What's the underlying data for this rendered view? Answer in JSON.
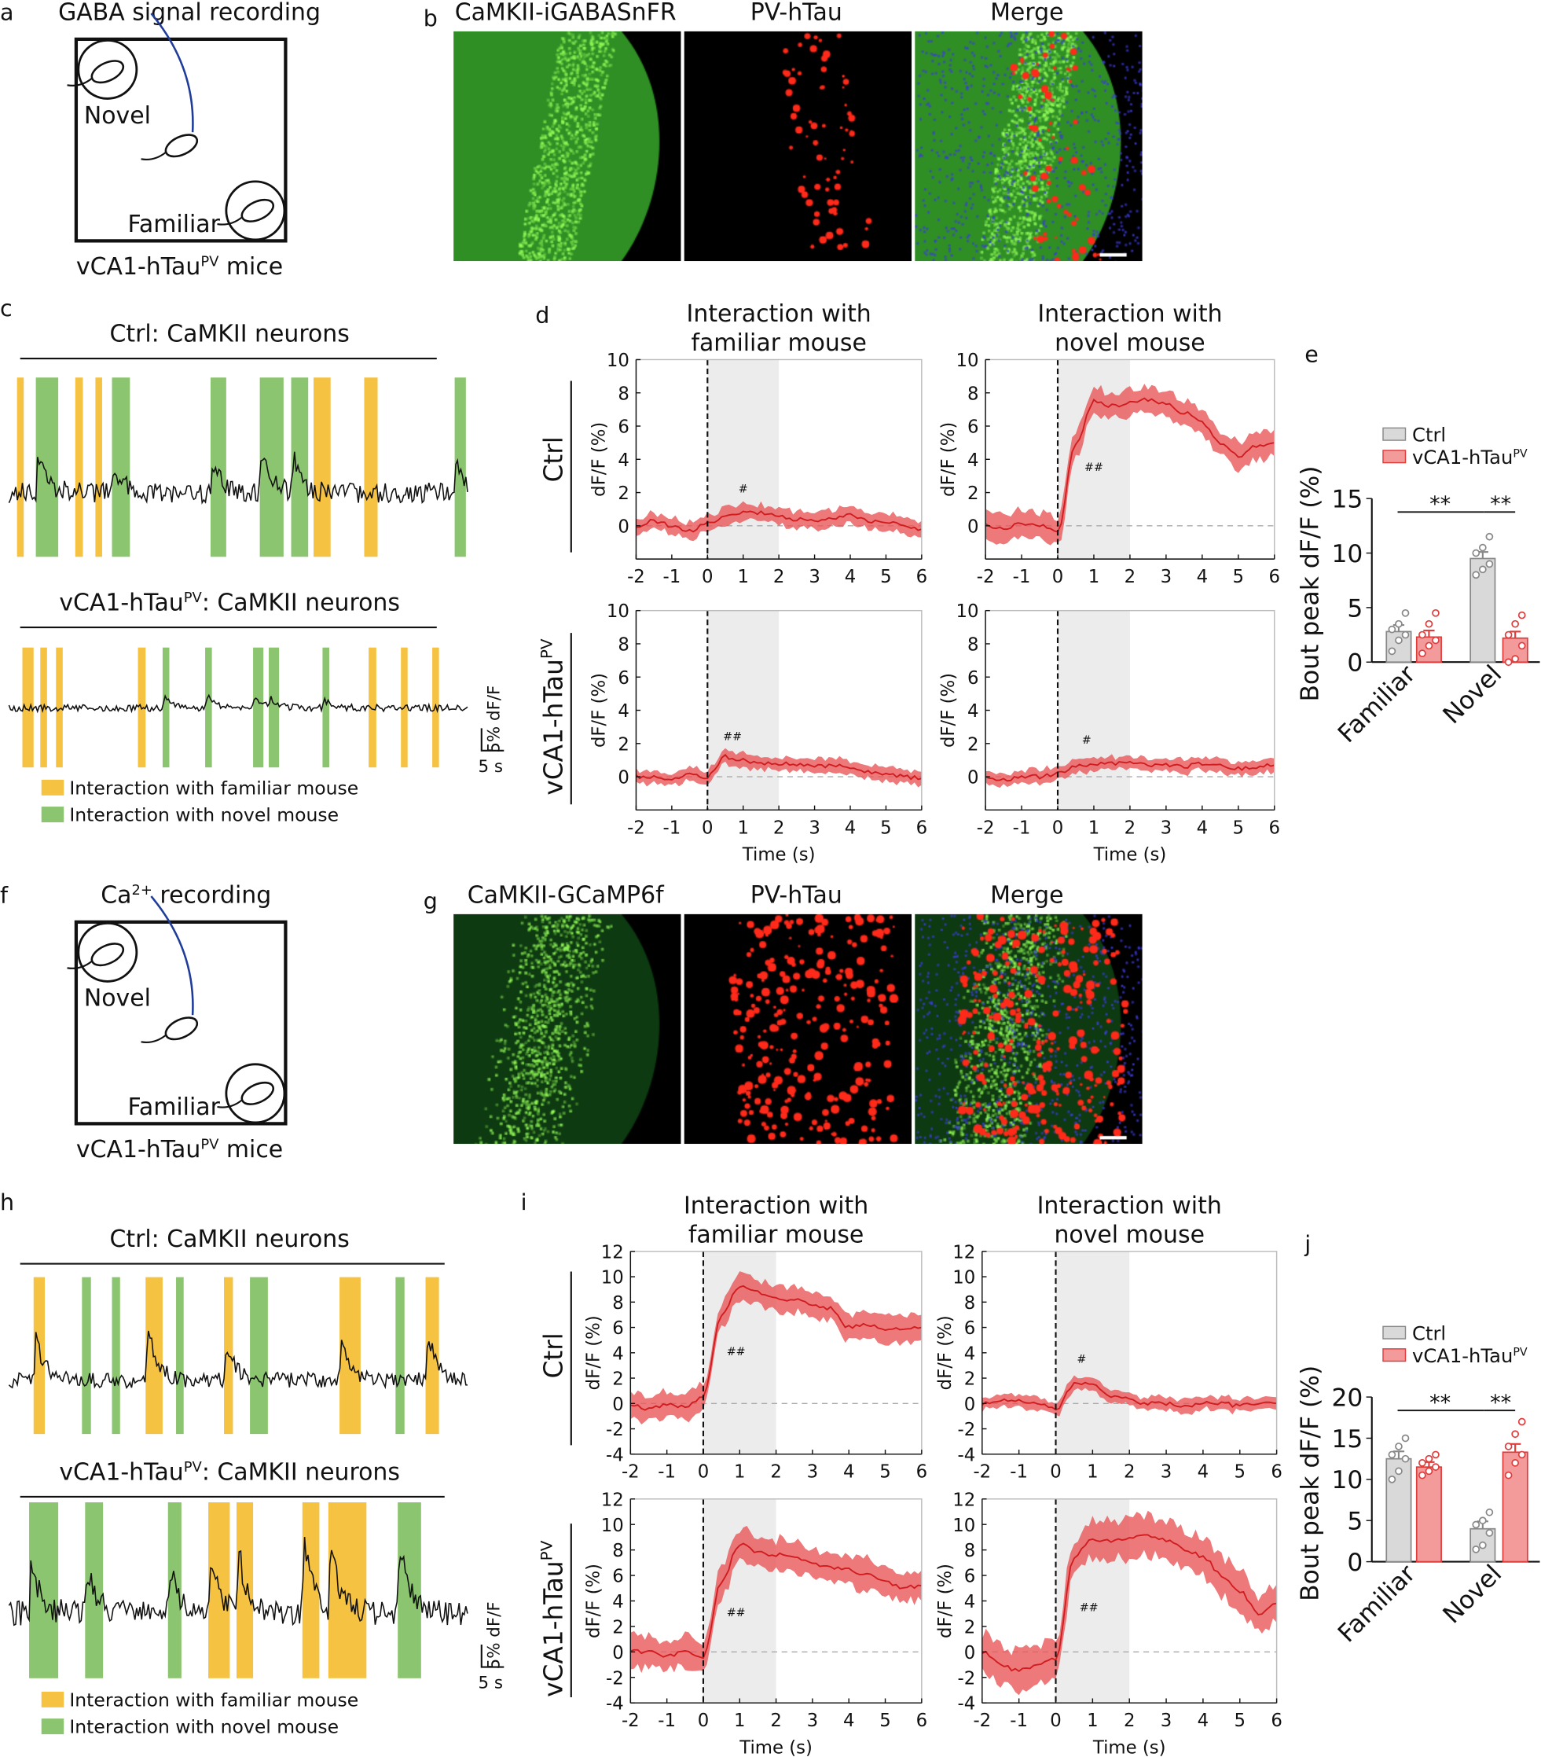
{
  "colors": {
    "green": "#5cc02b",
    "red": "#e8231f",
    "merge": "#c9c93a",
    "familiar_window": "#f5c242",
    "novel_window": "#8cc56f",
    "ctrl_bar": "#d9d9d9",
    "htau_bar": "#f39a9a",
    "line": "#e03a3a"
  },
  "panel_a": {
    "label": "a",
    "title": "GABA signal recording",
    "novel": "Novel",
    "familiar": "Familiar",
    "caption": "vCA1-hTau",
    "caption_sup": "PV",
    "caption_end": " mice"
  },
  "panel_b": {
    "label": "b",
    "channels": [
      "CaMKII-iGABASnFR",
      "PV-hTau",
      "Merge"
    ]
  },
  "panel_c": {
    "label": "c",
    "ctrl_title": "Ctrl: CaMKII neurons",
    "htau_title": "vCA1-hTau",
    "htau_sup": "PV",
    "htau_title_end": ": CaMKII neurons",
    "scale_x": "5 s",
    "scale_y": "5% dF/F",
    "legend_familiar": "Interaction with familiar mouse",
    "legend_novel": "Interaction with novel mouse",
    "ctrl_windows": [
      [
        "familiar",
        1.8,
        3.3
      ],
      [
        "novel",
        6,
        11
      ],
      [
        "familiar",
        14.8,
        16.5
      ],
      [
        "familiar",
        19.3,
        20.8
      ],
      [
        "novel",
        23,
        27
      ],
      [
        "novel",
        45,
        48.5
      ],
      [
        "novel",
        56,
        61.3
      ],
      [
        "novel",
        63,
        66.8
      ],
      [
        "familiar",
        68,
        71.8
      ],
      [
        "familiar",
        79.3,
        82.3
      ],
      [
        "novel",
        99.5,
        102
      ]
    ],
    "htau_windows": [
      [
        "familiar",
        3,
        5.5
      ],
      [
        "familiar",
        7,
        8.5
      ],
      [
        "familiar",
        10.5,
        12
      ],
      [
        "familiar",
        28.8,
        30.5
      ],
      [
        "novel",
        34.3,
        35.8
      ],
      [
        "novel",
        43.8,
        45.3
      ],
      [
        "novel",
        54.5,
        56.8
      ],
      [
        "novel",
        58,
        60.3
      ],
      [
        "novel",
        70,
        71.5
      ],
      [
        "familiar",
        80.3,
        82
      ],
      [
        "familiar",
        87.5,
        89
      ],
      [
        "familiar",
        94.5,
        96
      ]
    ]
  },
  "panel_d": {
    "label": "d",
    "row_ctrl": "Ctrl",
    "row_htau": "vCA1-hTau",
    "row_htau_sup": "PV"
  },
  "panel_e": {
    "label": "e"
  },
  "panel_f": {
    "label": "f",
    "title": "Ca",
    "title_sup": "2+",
    "title_end": " recording",
    "novel": "Novel",
    "familiar": "Familiar",
    "caption": "vCA1-hTau",
    "caption_sup": "PV",
    "caption_end": " mice"
  },
  "panel_g": {
    "label": "g",
    "channels": [
      "CaMKII-GCaMP6f",
      "PV-hTau",
      "Merge"
    ]
  },
  "panel_h": {
    "label": "h",
    "ctrl_title": "Ctrl: CaMKII neurons",
    "htau_title": "vCA1-hTau",
    "htau_sup": "PV",
    "htau_title_end": ": CaMKII neurons",
    "scale_x": "5 s",
    "scale_y": "5% dF/F",
    "legend_familiar": "Interaction with familiar mouse",
    "legend_novel": "Interaction with novel mouse",
    "ctrl_windows": [
      [
        "familiar",
        5.5,
        8
      ],
      [
        "novel",
        16.3,
        18.3
      ],
      [
        "novel",
        23,
        24.8
      ],
      [
        "familiar",
        30.5,
        34.3
      ],
      [
        "novel",
        37.3,
        39
      ],
      [
        "familiar",
        48,
        50
      ],
      [
        "novel",
        53.8,
        57.8
      ],
      [
        "familiar",
        73.8,
        78.5
      ],
      [
        "novel",
        86.3,
        88.3
      ],
      [
        "familiar",
        93,
        96
      ]
    ],
    "htau_windows": [
      [
        "novel",
        4.5,
        11
      ],
      [
        "novel",
        17,
        21
      ],
      [
        "novel",
        35.5,
        38.5
      ],
      [
        "familiar",
        44.5,
        49.3
      ],
      [
        "familiar",
        50.8,
        54.5
      ],
      [
        "familiar",
        65.5,
        69.3
      ],
      [
        "familiar",
        71.3,
        79.8
      ],
      [
        "novel",
        86.8,
        92
      ]
    ]
  },
  "panel_i": {
    "label": "i",
    "row_ctrl": "Ctrl",
    "row_htau": "vCA1-hTau",
    "row_htau_sup": "PV"
  },
  "panel_j": {
    "label": "j"
  },
  "chart_data": [
    {
      "id": "d-ctrl-familiar",
      "type": "line",
      "title": [
        "Interaction with",
        "familiar mouse"
      ],
      "ylabel": "dF/F (%)",
      "xlabel": "",
      "xlim": [
        -2,
        6
      ],
      "ylim": [
        -2,
        10
      ],
      "xticks": [
        -2,
        -1,
        0,
        1,
        2,
        3,
        4,
        5,
        6
      ],
      "yticks": [
        0,
        2,
        4,
        6,
        8,
        10
      ],
      "shaded": [
        0,
        2
      ],
      "annotation": "#",
      "x": [
        -2,
        -1.5,
        -1,
        -0.5,
        0,
        0.5,
        1,
        1.5,
        2,
        2.5,
        3,
        3.5,
        4,
        4.5,
        5,
        5.5,
        6
      ],
      "mean": [
        0,
        0.3,
        0,
        -0.3,
        0.2,
        0.5,
        0.8,
        0.8,
        0.6,
        0.4,
        0.3,
        0.5,
        0.7,
        0.3,
        0.2,
        0,
        -0.2
      ],
      "sem": 0.5
    },
    {
      "id": "d-ctrl-novel",
      "type": "line",
      "title": [
        "Interaction with",
        "novel mouse"
      ],
      "ylabel": "dF/F (%)",
      "xlabel": "",
      "xlim": [
        -2,
        6
      ],
      "ylim": [
        -2,
        10
      ],
      "xticks": [
        -2,
        -1,
        0,
        1,
        2,
        3,
        4,
        5,
        6
      ],
      "yticks": [
        0,
        2,
        4,
        6,
        8,
        10
      ],
      "shaded": [
        0,
        2
      ],
      "annotation": "##",
      "x": [
        -2,
        -1.5,
        -1,
        -0.5,
        0,
        0.5,
        1,
        1.5,
        2,
        2.5,
        3,
        3.5,
        4,
        4.5,
        5,
        5.5,
        6
      ],
      "mean": [
        0,
        -0.2,
        0.1,
        0,
        -0.3,
        5,
        7.5,
        7.2,
        7.4,
        7.6,
        7.3,
        6.8,
        6.2,
        5,
        4.2,
        4.8,
        5
      ],
      "sem": 0.8
    },
    {
      "id": "d-htau-familiar",
      "type": "line",
      "title": [],
      "ylabel": "dF/F (%)",
      "xlabel": "Time (s)",
      "xlim": [
        -2,
        6
      ],
      "ylim": [
        -2,
        10
      ],
      "xticks": [
        -2,
        -1,
        0,
        1,
        2,
        3,
        4,
        5,
        6
      ],
      "yticks": [
        0,
        2,
        4,
        6,
        8,
        10
      ],
      "shaded": [
        0,
        2
      ],
      "annotation": "##",
      "x": [
        -2,
        -1.5,
        -1,
        -0.5,
        0,
        0.5,
        1,
        1.5,
        2,
        2.5,
        3,
        3.5,
        4,
        4.5,
        5,
        5.5,
        6
      ],
      "mean": [
        0,
        0,
        -0.1,
        0.1,
        0,
        1.2,
        1,
        0.8,
        0.8,
        0.7,
        0.6,
        0.7,
        0.5,
        0.3,
        0.2,
        0,
        -0.1
      ],
      "sem": 0.4
    },
    {
      "id": "d-htau-novel",
      "type": "line",
      "title": [],
      "ylabel": "dF/F (%)",
      "xlabel": "Time (s)",
      "xlim": [
        -2,
        6
      ],
      "ylim": [
        -2,
        10
      ],
      "xticks": [
        -2,
        -1,
        0,
        1,
        2,
        3,
        4,
        5,
        6
      ],
      "yticks": [
        0,
        2,
        4,
        6,
        8,
        10
      ],
      "shaded": [
        0,
        2
      ],
      "annotation": "#",
      "x": [
        -2,
        -1.5,
        -1,
        -0.5,
        0,
        0.5,
        1,
        1.5,
        2,
        2.5,
        3,
        3.5,
        4,
        4.5,
        5,
        5.5,
        6
      ],
      "mean": [
        0,
        -0.2,
        0,
        0,
        0.2,
        0.6,
        0.8,
        0.8,
        0.8,
        0.7,
        0.7,
        0.6,
        0.8,
        0.7,
        0.5,
        0.6,
        0.7
      ],
      "sem": 0.4
    },
    {
      "id": "e",
      "type": "bar",
      "ylabel": "Bout peak dF/F (%)",
      "categories": [
        "Familiar",
        "Novel"
      ],
      "ylim": [
        0,
        15
      ],
      "yticks": [
        0,
        5,
        10,
        15
      ],
      "legend": "top",
      "series": [
        {
          "name": "Ctrl",
          "values": [
            2.8,
            9.5
          ],
          "sem": [
            0.6,
            0.6
          ],
          "points": [
            [
              1,
              2,
              2.5,
              3,
              3.5,
              4.5
            ],
            [
              8,
              8.5,
              9,
              10,
              10.5,
              11.5
            ]
          ]
        },
        {
          "name": "vCA1-hTau",
          "name_sup": "PV",
          "values": [
            2.3,
            2.2
          ],
          "sem": [
            0.6,
            0.6
          ],
          "points": [
            [
              0.8,
              1.5,
              2,
              2.5,
              3.5,
              4.5
            ],
            [
              0,
              0.3,
              1.5,
              2.5,
              3.5,
              4.3
            ]
          ]
        }
      ],
      "significance": [
        "**",
        "**"
      ]
    },
    {
      "id": "i-ctrl-familiar",
      "type": "line",
      "title": [
        "Interaction with",
        "familiar mouse"
      ],
      "ylabel": "dF/F (%)",
      "xlabel": "",
      "xlim": [
        -2,
        6
      ],
      "ylim": [
        -4,
        12
      ],
      "xticks": [
        -2,
        -1,
        0,
        1,
        2,
        3,
        4,
        5,
        6
      ],
      "yticks": [
        -4,
        -2,
        0,
        2,
        4,
        6,
        8,
        10,
        12
      ],
      "shaded": [
        0,
        2
      ],
      "annotation": "##",
      "x": [
        -2,
        -1.5,
        -1,
        -0.5,
        0,
        0.5,
        1,
        1.5,
        2,
        2.5,
        3,
        3.5,
        4,
        4.5,
        5,
        5.5,
        6
      ],
      "mean": [
        0,
        -0.5,
        0,
        -0.3,
        0.5,
        7,
        9.2,
        8.8,
        8.3,
        8.2,
        7.8,
        7.5,
        6,
        6.2,
        5.8,
        5.9,
        6
      ],
      "sem": 1
    },
    {
      "id": "i-ctrl-novel",
      "type": "line",
      "title": [
        "Interaction with",
        "novel mouse"
      ],
      "ylabel": "dF/F (%)",
      "xlabel": "",
      "xlim": [
        -2,
        6
      ],
      "ylim": [
        -4,
        12
      ],
      "xticks": [
        -2,
        -1,
        0,
        1,
        2,
        3,
        4,
        5,
        6
      ],
      "yticks": [
        -4,
        -2,
        0,
        2,
        4,
        6,
        8,
        10,
        12
      ],
      "shaded": [
        0,
        2
      ],
      "annotation": "#",
      "x": [
        -2,
        -1.5,
        -1,
        -0.5,
        0,
        0.5,
        1,
        1.5,
        2,
        2.5,
        3,
        3.5,
        4,
        4.5,
        5,
        5.5,
        6
      ],
      "mean": [
        0,
        0.2,
        0.2,
        0,
        -0.5,
        1.5,
        1.5,
        0.6,
        0.3,
        0,
        0,
        -0.2,
        0,
        0,
        -0.2,
        0,
        0
      ],
      "sem": 0.5
    },
    {
      "id": "i-htau-familiar",
      "type": "line",
      "title": [],
      "ylabel": "dF/F (%)",
      "xlabel": "Time (s)",
      "xlim": [
        -2,
        6
      ],
      "ylim": [
        -4,
        12
      ],
      "xticks": [
        -2,
        -1,
        0,
        1,
        2,
        3,
        4,
        5,
        6
      ],
      "yticks": [
        -4,
        -2,
        0,
        2,
        4,
        6,
        8,
        10,
        12
      ],
      "shaded": [
        0,
        2
      ],
      "annotation": "##",
      "x": [
        -2,
        -1.5,
        -1,
        -0.5,
        0,
        0.5,
        1,
        1.5,
        2,
        2.5,
        3,
        3.5,
        4,
        4.5,
        5,
        5.5,
        6
      ],
      "mean": [
        0,
        0,
        -0.3,
        0,
        -0.5,
        5.5,
        8.5,
        7.8,
        7.6,
        7.5,
        7,
        6.6,
        6.5,
        6,
        5.5,
        5,
        5.2
      ],
      "sem": 1.2
    },
    {
      "id": "i-htau-novel",
      "type": "line",
      "title": [],
      "ylabel": "dF/F (%)",
      "xlabel": "Time (s)",
      "xlim": [
        -2,
        6
      ],
      "ylim": [
        -4,
        12
      ],
      "xticks": [
        -2,
        -1,
        0,
        1,
        2,
        3,
        4,
        5,
        6
      ],
      "yticks": [
        -4,
        -2,
        0,
        2,
        4,
        6,
        8,
        10,
        12
      ],
      "shaded": [
        0,
        2
      ],
      "annotation": "##",
      "x": [
        -2,
        -1.5,
        -1,
        -0.5,
        0,
        0.5,
        1,
        1.5,
        2,
        2.5,
        3,
        3.5,
        4,
        4.5,
        5,
        5.5,
        6
      ],
      "mean": [
        0,
        -1,
        -1.5,
        -1,
        -0.5,
        7.5,
        8.8,
        8.7,
        9,
        9.2,
        8.8,
        8,
        7.5,
        6,
        4.8,
        3,
        3.8
      ],
      "sem": 1.5
    },
    {
      "id": "j",
      "type": "bar",
      "ylabel": "Bout peak dF/F (%)",
      "categories": [
        "Familiar",
        "Novel"
      ],
      "ylim": [
        0,
        20
      ],
      "yticks": [
        0,
        5,
        10,
        15,
        20
      ],
      "legend": "top",
      "series": [
        {
          "name": "Ctrl",
          "values": [
            12.5,
            4
          ],
          "sem": [
            0.9,
            0.9
          ],
          "points": [
            [
              10,
              11,
              12.5,
              13,
              14,
              15
            ],
            [
              1.5,
              2,
              3.5,
              4.5,
              5,
              6
            ]
          ]
        },
        {
          "name": "vCA1-hTau",
          "name_sup": "PV",
          "values": [
            11.5,
            13.3
          ],
          "sem": [
            0.6,
            1
          ],
          "points": [
            [
              10.5,
              11,
              11.5,
              12,
              12.5,
              13
            ],
            [
              10.5,
              12,
              13,
              14,
              15.5,
              17
            ]
          ]
        }
      ],
      "significance": [
        "**",
        "**"
      ]
    }
  ]
}
